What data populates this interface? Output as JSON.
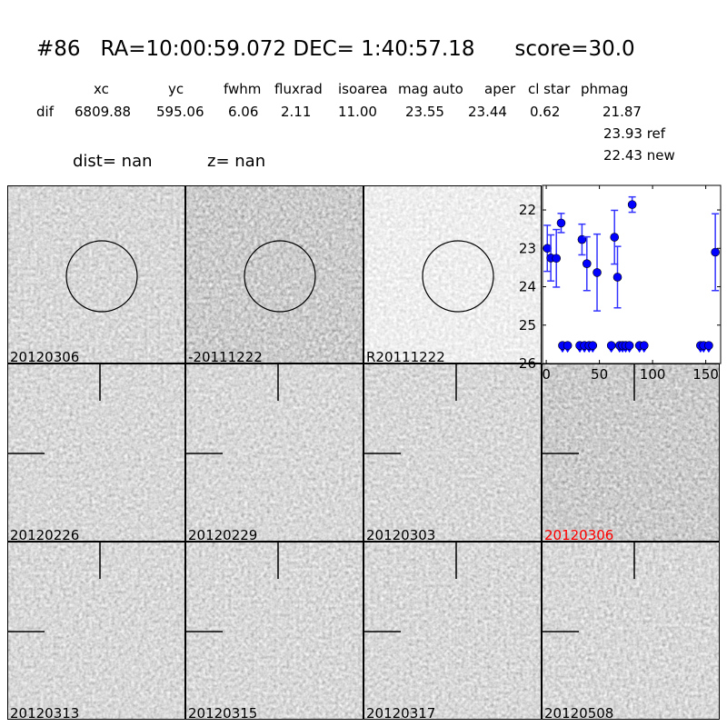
{
  "title": {
    "id": "#86",
    "ra": "RA=10:00:59.072",
    "dec": "DEC= 1:40:57.18",
    "score": "score=30.0"
  },
  "table": {
    "headers": [
      "xc",
      "yc",
      "fwhm",
      "fluxrad",
      "isoarea",
      "mag auto",
      "aper",
      "cl star",
      "phmag"
    ],
    "row_label": "dif",
    "values": [
      "6809.88",
      "595.06",
      "6.06",
      "2.11",
      "11.00",
      "23.55",
      "23.44",
      "0.62",
      "21.87"
    ],
    "ref": "23.93 ref",
    "new": "22.43 new"
  },
  "dist": "dist=   nan",
  "z": "z=   nan",
  "panels": [
    {
      "label": "20120306",
      "circle": true,
      "tone": "mid"
    },
    {
      "label": "-20111222",
      "circle": true,
      "tone": "dark"
    },
    {
      "label": "R20111222",
      "circle": true,
      "tone": "light"
    },
    {
      "label": "20120226",
      "circle": false,
      "tone": "mid"
    },
    {
      "label": "20120229",
      "circle": false,
      "tone": "mid"
    },
    {
      "label": "20120303",
      "circle": false,
      "tone": "mid"
    },
    {
      "label": "20120306",
      "circle": false,
      "tone": "dark",
      "highlight": true
    },
    {
      "label": "20120313",
      "circle": false,
      "tone": "mid"
    },
    {
      "label": "20120315",
      "circle": false,
      "tone": "mid"
    },
    {
      "label": "20120317",
      "circle": false,
      "tone": "mid"
    },
    {
      "label": "20120508",
      "circle": false,
      "tone": "mid"
    }
  ],
  "highlight_color": "#ff0000",
  "chart_data": {
    "type": "scatter",
    "xlim": [
      -3.5,
      164
    ],
    "ylim": [
      26,
      21.36
    ],
    "y_inverted": true,
    "xticks": [
      "0",
      "50",
      "100",
      "150"
    ],
    "yticks": [
      "22",
      "23",
      "24",
      "25",
      "26"
    ],
    "marker_color": "#0000ff",
    "detections": [
      {
        "x": 1,
        "y": 23.0,
        "err": 0.6
      },
      {
        "x": 4.3,
        "y": 23.25,
        "err": 0.6
      },
      {
        "x": 9.5,
        "y": 23.26,
        "err": 0.75
      },
      {
        "x": 14,
        "y": 22.34,
        "err": 0.25
      },
      {
        "x": 33.6,
        "y": 22.77,
        "err": 0.4
      },
      {
        "x": 38.2,
        "y": 23.4,
        "err": 0.7
      },
      {
        "x": 47.8,
        "y": 23.63,
        "err": 1.0
      },
      {
        "x": 64.2,
        "y": 22.71,
        "err": 0.7
      },
      {
        "x": 67,
        "y": 23.75,
        "err": 0.8
      },
      {
        "x": 80.8,
        "y": 21.86,
        "err": 0.2
      },
      {
        "x": 159,
        "y": 23.1,
        "err": 1.0
      }
    ],
    "upper_limits": {
      "y": 25.53,
      "x": [
        15.3,
        20.1,
        31.6,
        35.9,
        40.3,
        43.7,
        61.2,
        69,
        71.8,
        74.7,
        78.2,
        87.7,
        92,
        145.1,
        148,
        152.8
      ]
    }
  }
}
